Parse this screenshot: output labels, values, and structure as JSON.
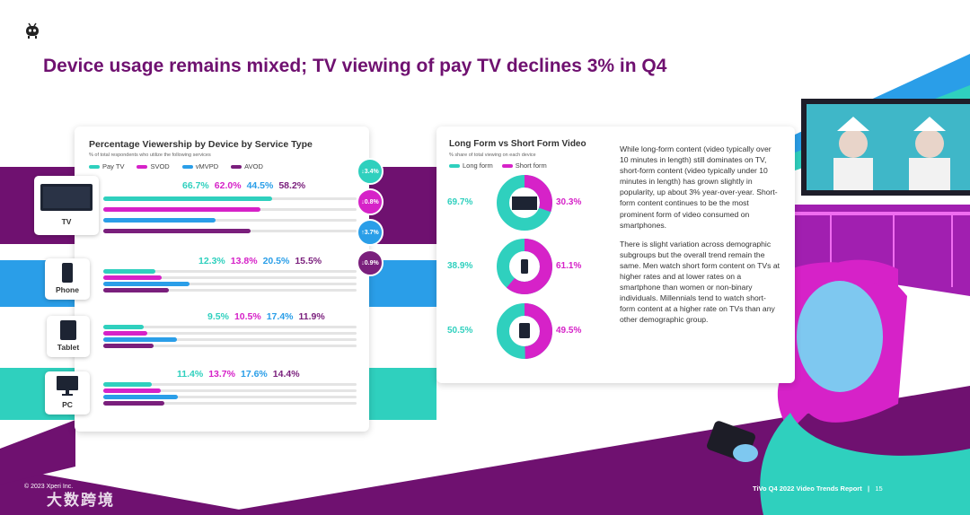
{
  "title": "Device usage remains mixed; TV viewing of pay TV declines 3% in Q4",
  "colors": {
    "pay_tv": "#2fd0be",
    "svod": "#d622c8",
    "vmvpd": "#2a9ee8",
    "avod": "#7a1f7c",
    "title": "#6f1170",
    "long_form": "#2fd0be",
    "short_form": "#d622c8"
  },
  "left_chart": {
    "title": "Percentage Viewership by Device by Service Type",
    "subtitle": "% of total respondents who utilize the following services",
    "legend": [
      "Pay TV",
      "SVOD",
      "vMVPD",
      "AVOD"
    ],
    "devices": [
      {
        "label": "TV",
        "values": [
          "66.7%",
          "62.0%",
          "44.5%",
          "58.2%"
        ],
        "icon": "tv-icon"
      },
      {
        "label": "Phone",
        "values": [
          "12.3%",
          "13.8%",
          "20.5%",
          "15.5%"
        ],
        "icon": "phone-icon"
      },
      {
        "label": "Tablet",
        "values": [
          "9.5%",
          "10.5%",
          "17.4%",
          "11.9%"
        ],
        "icon": "tablet-icon"
      },
      {
        "label": "PC",
        "values": [
          "11.4%",
          "13.7%",
          "17.6%",
          "14.4%"
        ],
        "icon": "pc-icon"
      }
    ],
    "changes": [
      {
        "value": "3.4%",
        "direction": "down",
        "color": "#2fd0be"
      },
      {
        "value": "0.8%",
        "direction": "down",
        "color": "#d622c8"
      },
      {
        "value": "3.7%",
        "direction": "up",
        "color": "#2a9ee8"
      },
      {
        "value": "0.9%",
        "direction": "down",
        "color": "#7a1f7c"
      }
    ]
  },
  "chart_data": {
    "type": "bar",
    "title": "Percentage Viewership by Device by Service Type",
    "categories": [
      "TV",
      "Phone",
      "Tablet",
      "PC"
    ],
    "series": [
      {
        "name": "Pay TV",
        "values": [
          66.7,
          12.3,
          9.5,
          11.4
        ]
      },
      {
        "name": "SVOD",
        "values": [
          62.0,
          13.8,
          10.5,
          13.7
        ]
      },
      {
        "name": "vMVPD",
        "values": [
          44.5,
          20.5,
          17.4,
          17.6
        ]
      },
      {
        "name": "AVOD",
        "values": [
          58.2,
          15.5,
          11.9,
          14.4
        ]
      }
    ],
    "xlim": [
      0,
      100
    ]
  },
  "right_chart": {
    "title": "Long Form vs Short Form Video",
    "subtitle": "% share of total viewing on each device",
    "legend": [
      "Long form",
      "Short form"
    ],
    "donuts": [
      {
        "device": "tv-icon",
        "long": "69.7%",
        "short": "30.3%",
        "long_value": 69.7,
        "short_value": 30.3
      },
      {
        "device": "phone-icon",
        "long": "38.9%",
        "short": "61.1%",
        "long_value": 38.9,
        "short_value": 61.1
      },
      {
        "device": "tablet-icon",
        "long": "50.5%",
        "short": "49.5%",
        "long_value": 50.5,
        "short_value": 49.5
      }
    ],
    "paragraph1": "While long-form content (video typically over 10 minutes in length) still dominates on TV, short-form content (video typically under 10 minutes in length) has grown slightly in popularity, up about 3% year-over-year. Short-form content continues to be the most prominent form of video consumed on smartphones.",
    "paragraph2": "There is slight variation across demographic subgroups but the overall trend remain the same. Men watch short form content on TVs at higher rates and at lower rates on a smartphone than women or non-binary individuals. Millennials tend to watch short-form content at a higher rate on TVs than any other demographic group."
  },
  "footer": {
    "copyright": "© 2023 Xperi Inc.",
    "report": "TiVo Q4 2022 Video Trends Report",
    "separator": "|",
    "page": "15",
    "watermark": "大数跨境"
  }
}
